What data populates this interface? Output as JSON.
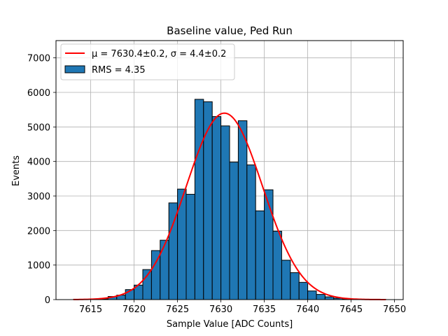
{
  "chart_data": {
    "type": "bar",
    "title": "Baseline value, Ped Run",
    "xlabel": "Sample Value [ADC Counts]",
    "ylabel": "Events",
    "xlim": [
      7611,
      7651
    ],
    "ylim": [
      0,
      7500
    ],
    "xticks": [
      7615,
      7620,
      7625,
      7630,
      7635,
      7640,
      7645,
      7650
    ],
    "yticks": [
      0,
      1000,
      2000,
      3000,
      4000,
      5000,
      6000,
      7000
    ],
    "grid": true,
    "legend_position": "top-left",
    "histogram": {
      "name": "RMS = 4.35",
      "bin_width": 1.0,
      "bin_left_edges": [
        7613,
        7614,
        7615,
        7616,
        7617,
        7618,
        7619,
        7620,
        7621,
        7622,
        7623,
        7624,
        7625,
        7626,
        7627,
        7628,
        7629,
        7630,
        7631,
        7632,
        7633,
        7634,
        7635,
        7636,
        7637,
        7638,
        7639,
        7640,
        7641,
        7642,
        7643,
        7644,
        7645,
        7646,
        7647,
        7648
      ],
      "counts": [
        5,
        5,
        10,
        20,
        90,
        130,
        290,
        420,
        870,
        1420,
        1720,
        2800,
        3200,
        3050,
        5800,
        5730,
        5300,
        5030,
        3980,
        5180,
        3900,
        2570,
        3180,
        1980,
        1140,
        780,
        500,
        250,
        150,
        80,
        40,
        20,
        10,
        5,
        5,
        5
      ],
      "fill_color": "#1f77b4",
      "edge_color": "#000000"
    },
    "fit": {
      "name_prefix": "μ = 7630.4±0.2, σ = 4.4±0.2",
      "mu": 7630.4,
      "sigma": 4.4,
      "amplitude": 5400,
      "x_range": [
        7613,
        7649
      ],
      "color": "#ff0000"
    }
  }
}
